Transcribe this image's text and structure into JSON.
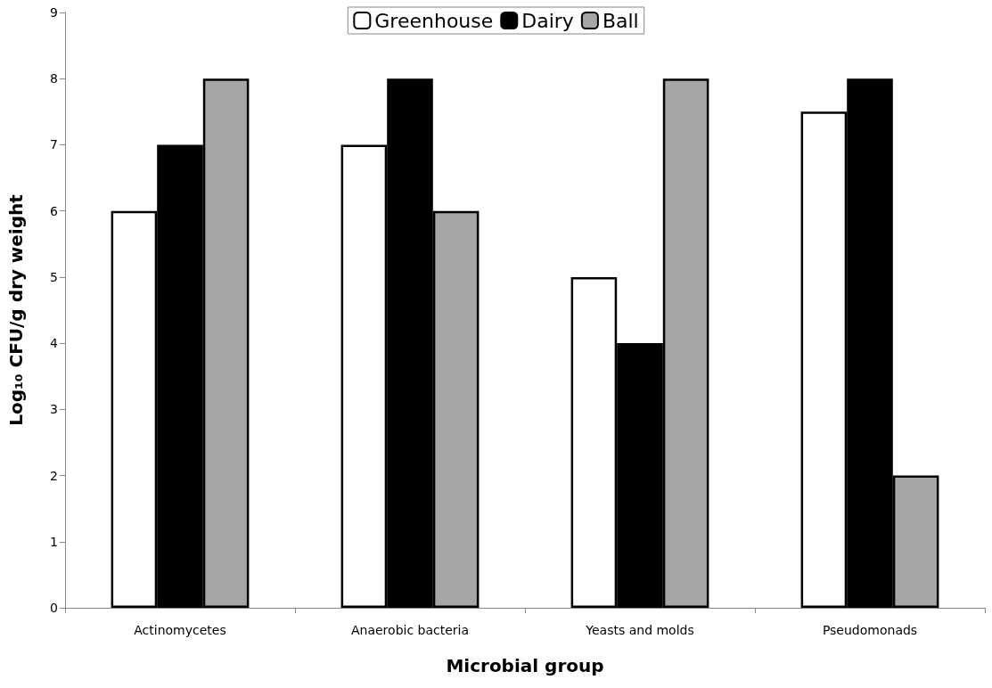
{
  "chart_data": {
    "type": "bar",
    "xlabel": "Microbial group",
    "ylabel": "Log₁₀ CFU/g dry weight",
    "categories": [
      "Actinomycetes",
      "Anaerobic bacteria",
      "Yeasts and molds",
      "Pseudomonads"
    ],
    "series": [
      {
        "name": "Greenhouse",
        "color": "#ffffff",
        "values": [
          6,
          7,
          5,
          7.5
        ]
      },
      {
        "name": "Dairy",
        "color": "#000000",
        "values": [
          7,
          8,
          4,
          8
        ]
      },
      {
        "name": "Ball",
        "color": "#a6a6a6",
        "values": [
          8,
          6,
          8,
          2
        ]
      }
    ],
    "ylim": [
      0,
      9
    ],
    "yticks": [
      0,
      1,
      2,
      3,
      4,
      5,
      6,
      7,
      8,
      9
    ],
    "grid": false,
    "legend": "top"
  }
}
